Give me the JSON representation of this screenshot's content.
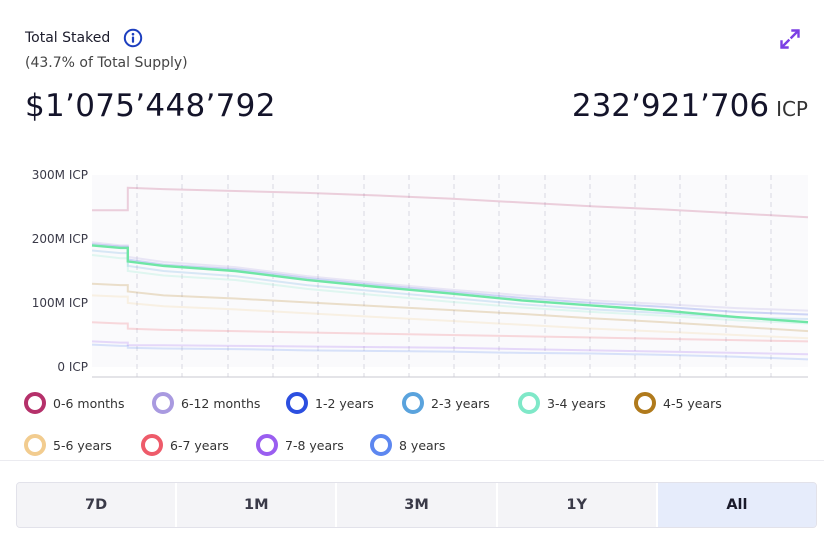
{
  "header": {
    "title": "Total Staked",
    "subtitle": "(43.7% of Total Supply)",
    "usd_value": "$1’075’448’792",
    "icp_value": "232’921’706",
    "icp_unit": "ICP"
  },
  "colors": {
    "accent": "#7b3fe4",
    "highlight_line": "#6fe6a6"
  },
  "legend": [
    {
      "label": "0-6 months",
      "color": "#b5306a"
    },
    {
      "label": "6-12 months",
      "color": "#a99ae0"
    },
    {
      "label": "1-2 years",
      "color": "#2c4fe0"
    },
    {
      "label": "2-3 years",
      "color": "#5aa3dd"
    },
    {
      "label": "3-4 years",
      "color": "#7fe8c8"
    },
    {
      "label": "4-5 years",
      "color": "#b07a1c"
    },
    {
      "label": "5-6 years",
      "color": "#f2cc8f"
    },
    {
      "label": "6-7 years",
      "color": "#ee5b6a"
    },
    {
      "label": "7-8 years",
      "color": "#9a5ef0"
    },
    {
      "label": "8 years",
      "color": "#5d87f0"
    }
  ],
  "ranges": [
    {
      "label": "7D",
      "active": false
    },
    {
      "label": "1M",
      "active": false
    },
    {
      "label": "3M",
      "active": false
    },
    {
      "label": "1Y",
      "active": false
    },
    {
      "label": "All",
      "active": true
    }
  ],
  "chart_data": {
    "type": "line",
    "ylabel_ticks": [
      "0 ICP",
      "100M ICP",
      "200M ICP",
      "300M ICP"
    ],
    "ylim": [
      0,
      300
    ],
    "x": [
      0,
      4,
      5,
      10,
      20,
      30,
      40,
      50,
      60,
      70,
      80,
      90,
      100
    ],
    "grid": "vertical dashed",
    "series": [
      {
        "highlight": true,
        "values": [
          190,
          186,
          165,
          158,
          150,
          136,
          125,
          115,
          104,
          96,
          88,
          78,
          70
        ]
      },
      {
        "values": [
          245,
          245,
          280,
          278,
          275,
          272,
          268,
          263,
          257,
          251,
          246,
          240,
          234
        ]
      },
      {
        "values": [
          195,
          190,
          172,
          164,
          156,
          142,
          131,
          121,
          112,
          104,
          98,
          92,
          88
        ]
      },
      {
        "values": [
          192,
          188,
          168,
          160,
          153,
          139,
          128,
          118,
          108,
          100,
          94,
          86,
          82
        ]
      },
      {
        "values": [
          182,
          178,
          158,
          150,
          142,
          128,
          118,
          108,
          98,
          90,
          84,
          77,
          75
        ]
      },
      {
        "values": [
          175,
          170,
          150,
          143,
          136,
          122,
          112,
          102,
          93,
          86,
          80,
          73,
          68
        ]
      },
      {
        "values": [
          130,
          128,
          118,
          112,
          107,
          101,
          95,
          89,
          83,
          76,
          70,
          63,
          56
        ]
      },
      {
        "values": [
          112,
          110,
          100,
          95,
          90,
          84,
          78,
          72,
          66,
          60,
          55,
          50,
          45
        ]
      },
      {
        "values": [
          70,
          68,
          60,
          58,
          56,
          54,
          52,
          50,
          48,
          46,
          44,
          42,
          40
        ]
      },
      {
        "values": [
          40,
          38,
          34,
          34,
          33,
          32,
          31,
          30,
          28,
          26,
          24,
          22,
          20
        ]
      },
      {
        "values": [
          35,
          33,
          30,
          29,
          28,
          26,
          25,
          24,
          22,
          21,
          19,
          16,
          12
        ]
      }
    ]
  }
}
